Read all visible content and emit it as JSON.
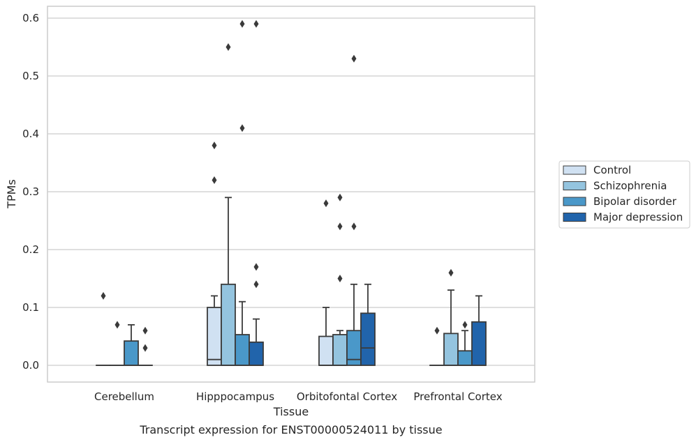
{
  "chart_data": {
    "type": "box",
    "xlabel": "Tissue",
    "ylabel": "TPMs",
    "caption": "Transcript expression for ENST00000524011 by tissue",
    "ylim": [
      -0.028,
      0.62
    ],
    "yticks": [
      0.0,
      0.1,
      0.2,
      0.3,
      0.4,
      0.5,
      0.6
    ],
    "ytick_labels": [
      "0.0",
      "0.1",
      "0.2",
      "0.3",
      "0.4",
      "0.5",
      "0.6"
    ],
    "grid": "horizontal",
    "legend_position": "right",
    "categories": [
      "Cerebellum",
      "Hipppocampus",
      "Orbitofontal Cortex",
      "Prefrontal Cortex"
    ],
    "series": [
      {
        "name": "Control",
        "color": "#d0e1f2",
        "boxes": [
          {
            "q1": 0.0,
            "median": 0.0,
            "q3": 0.0,
            "whisker_low": 0.0,
            "whisker_high": 0.0,
            "fliers": [
              0.12
            ]
          },
          {
            "q1": 0.0,
            "median": 0.01,
            "q3": 0.1,
            "whisker_low": 0.0,
            "whisker_high": 0.12,
            "fliers": [
              0.38,
              0.32
            ]
          },
          {
            "q1": 0.0,
            "median": 0.0,
            "q3": 0.05,
            "whisker_low": 0.0,
            "whisker_high": 0.1,
            "fliers": [
              0.28
            ]
          },
          {
            "q1": 0.0,
            "median": 0.0,
            "q3": 0.0,
            "whisker_low": 0.0,
            "whisker_high": 0.0,
            "fliers": [
              0.06
            ]
          }
        ]
      },
      {
        "name": "Schizophrenia",
        "color": "#94c4df",
        "boxes": [
          {
            "q1": 0.0,
            "median": 0.0,
            "q3": 0.0,
            "whisker_low": 0.0,
            "whisker_high": 0.0,
            "fliers": [
              0.07
            ]
          },
          {
            "q1": 0.0,
            "median": 0.0,
            "q3": 0.14,
            "whisker_low": 0.0,
            "whisker_high": 0.29,
            "fliers": [
              0.55
            ]
          },
          {
            "q1": 0.0,
            "median": 0.0,
            "q3": 0.053,
            "whisker_low": 0.0,
            "whisker_high": 0.06,
            "fliers": [
              0.29,
              0.24,
              0.15
            ]
          },
          {
            "q1": 0.0,
            "median": 0.0,
            "q3": 0.055,
            "whisker_low": 0.0,
            "whisker_high": 0.13,
            "fliers": [
              0.16
            ]
          }
        ]
      },
      {
        "name": "Bipolar disorder",
        "color": "#4a98c9",
        "boxes": [
          {
            "q1": 0.0,
            "median": 0.0,
            "q3": 0.042,
            "whisker_low": 0.0,
            "whisker_high": 0.07,
            "fliers": []
          },
          {
            "q1": 0.0,
            "median": 0.0,
            "q3": 0.053,
            "whisker_low": 0.0,
            "whisker_high": 0.11,
            "fliers": [
              0.59,
              0.41
            ]
          },
          {
            "q1": 0.0,
            "median": 0.01,
            "q3": 0.06,
            "whisker_low": 0.0,
            "whisker_high": 0.14,
            "fliers": [
              0.53,
              0.24
            ]
          },
          {
            "q1": 0.0,
            "median": 0.0,
            "q3": 0.025,
            "whisker_low": 0.0,
            "whisker_high": 0.06,
            "fliers": [
              0.07
            ]
          }
        ]
      },
      {
        "name": "Major depression",
        "color": "#2164ab",
        "boxes": [
          {
            "q1": 0.0,
            "median": 0.0,
            "q3": 0.0,
            "whisker_low": 0.0,
            "whisker_high": 0.0,
            "fliers": [
              0.06,
              0.03
            ]
          },
          {
            "q1": 0.0,
            "median": 0.0,
            "q3": 0.04,
            "whisker_low": 0.0,
            "whisker_high": 0.08,
            "fliers": [
              0.59,
              0.17,
              0.14
            ]
          },
          {
            "q1": 0.0,
            "median": 0.03,
            "q3": 0.09,
            "whisker_low": 0.0,
            "whisker_high": 0.14,
            "fliers": []
          },
          {
            "q1": 0.0,
            "median": 0.0,
            "q3": 0.075,
            "whisker_low": 0.0,
            "whisker_high": 0.12,
            "fliers": []
          }
        ]
      }
    ]
  }
}
